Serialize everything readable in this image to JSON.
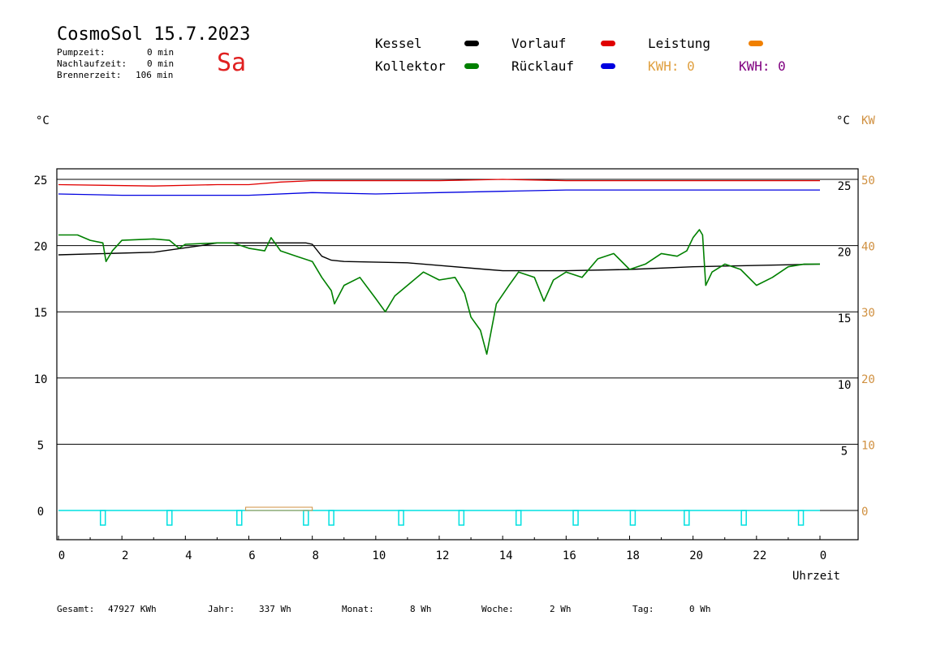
{
  "header": {
    "title": "CosmoSol 15.7.2023",
    "day": "Sa",
    "pumpzeit_label": "Pumpzeit:",
    "pumpzeit_value": "0 min",
    "nachlaufzeit_label": "Nachlaufzeit:",
    "nachlaufzeit_value": "0 min",
    "brennerzeit_label": "Brennerzeit:",
    "brennerzeit_value": "106 min"
  },
  "legend": {
    "kessel": "Kessel",
    "kollektor": "Kollektor",
    "vorlauf": "Vorlauf",
    "ruecklauf": "Rücklauf",
    "leistung": "Leistung",
    "kwh1": "KWH: 0",
    "kwh2": "KWH: 0"
  },
  "colors": {
    "kessel": "#000000",
    "kollektor": "#008000",
    "vorlauf": "#e00000",
    "ruecklauf": "#0000e0",
    "leistung": "#f08000",
    "kwh1": "#e0a040",
    "kwh2": "#800080",
    "pump": "#00e0e0",
    "burner": "#d09040"
  },
  "footer": {
    "gesamt_label": "Gesamt:",
    "gesamt_value": "47927 KWh",
    "jahr_label": "Jahr:",
    "jahr_value": "337 Wh",
    "monat_label": "Monat:",
    "monat_value": "8 Wh",
    "woche_label": "Woche:",
    "woche_value": "2 Wh",
    "tag_label": "Tag:",
    "tag_value": "0 Wh"
  },
  "chart_data": {
    "type": "line",
    "xlabel": "Uhrzeit",
    "ylabel_left": "°C",
    "ylabel_right": "°C",
    "ylabel_right2": "KW",
    "x_ticks": [
      "0",
      "2",
      "4",
      "6",
      "8",
      "10",
      "12",
      "14",
      "16",
      "18",
      "20",
      "22",
      "0"
    ],
    "y_ticks_left": [
      "0",
      "5",
      "10",
      "15",
      "20",
      "25"
    ],
    "y_ticks_right": [
      "5",
      "10",
      "15",
      "20",
      "25"
    ],
    "y_ticks_kw": [
      "0",
      "10",
      "20",
      "30",
      "40",
      "50"
    ],
    "xlim": [
      0,
      24
    ],
    "ylim": [
      -2,
      26
    ],
    "grid": "horizontal",
    "series": [
      {
        "name": "Vorlauf",
        "points": [
          [
            0,
            24.6
          ],
          [
            3,
            24.5
          ],
          [
            5,
            24.6
          ],
          [
            6,
            24.6
          ],
          [
            7,
            24.8
          ],
          [
            8,
            24.9
          ],
          [
            10,
            24.9
          ],
          [
            12,
            24.9
          ],
          [
            14,
            25.0
          ],
          [
            16,
            24.9
          ],
          [
            18,
            24.9
          ],
          [
            20,
            24.9
          ],
          [
            22,
            24.9
          ],
          [
            24,
            24.9
          ]
        ]
      },
      {
        "name": "Rücklauf",
        "points": [
          [
            0,
            23.9
          ],
          [
            2,
            23.8
          ],
          [
            4,
            23.8
          ],
          [
            6,
            23.8
          ],
          [
            8,
            24.0
          ],
          [
            10,
            23.9
          ],
          [
            12,
            24.0
          ],
          [
            14,
            24.1
          ],
          [
            16,
            24.2
          ],
          [
            18,
            24.2
          ],
          [
            20,
            24.2
          ],
          [
            22,
            24.2
          ],
          [
            24,
            24.2
          ]
        ]
      },
      {
        "name": "Kessel",
        "points": [
          [
            0,
            19.3
          ],
          [
            3,
            19.5
          ],
          [
            4.5,
            20.0
          ],
          [
            5,
            20.2
          ],
          [
            7.8,
            20.2
          ],
          [
            8.0,
            20.1
          ],
          [
            8.3,
            19.2
          ],
          [
            8.6,
            18.9
          ],
          [
            9,
            18.8
          ],
          [
            11,
            18.7
          ],
          [
            12,
            18.5
          ],
          [
            13.5,
            18.2
          ],
          [
            14,
            18.1
          ],
          [
            16,
            18.1
          ],
          [
            18,
            18.2
          ],
          [
            20,
            18.4
          ],
          [
            22,
            18.5
          ],
          [
            24,
            18.6
          ]
        ]
      },
      {
        "name": "Kollektor",
        "points": [
          [
            0,
            20.8
          ],
          [
            0.6,
            20.8
          ],
          [
            1.0,
            20.4
          ],
          [
            1.4,
            20.2
          ],
          [
            1.5,
            18.8
          ],
          [
            1.7,
            19.6
          ],
          [
            2.0,
            20.4
          ],
          [
            3.0,
            20.5
          ],
          [
            3.5,
            20.4
          ],
          [
            3.8,
            19.8
          ],
          [
            4.0,
            20.1
          ],
          [
            5.0,
            20.2
          ],
          [
            5.5,
            20.2
          ],
          [
            6.0,
            19.8
          ],
          [
            6.5,
            19.6
          ],
          [
            6.7,
            20.6
          ],
          [
            7.0,
            19.6
          ],
          [
            7.5,
            19.2
          ],
          [
            8.0,
            18.8
          ],
          [
            8.3,
            17.6
          ],
          [
            8.6,
            16.6
          ],
          [
            8.7,
            15.6
          ],
          [
            9.0,
            17.0
          ],
          [
            9.5,
            17.6
          ],
          [
            10.0,
            16.0
          ],
          [
            10.3,
            15.0
          ],
          [
            10.6,
            16.2
          ],
          [
            11.0,
            17.0
          ],
          [
            11.5,
            18.0
          ],
          [
            12.0,
            17.4
          ],
          [
            12.5,
            17.6
          ],
          [
            12.8,
            16.4
          ],
          [
            13.0,
            14.6
          ],
          [
            13.3,
            13.6
          ],
          [
            13.5,
            11.8
          ],
          [
            13.8,
            15.6
          ],
          [
            14.2,
            17.0
          ],
          [
            14.5,
            18.0
          ],
          [
            15.0,
            17.6
          ],
          [
            15.3,
            15.8
          ],
          [
            15.6,
            17.4
          ],
          [
            16.0,
            18.0
          ],
          [
            16.5,
            17.6
          ],
          [
            17.0,
            19.0
          ],
          [
            17.5,
            19.4
          ],
          [
            18.0,
            18.2
          ],
          [
            18.5,
            18.6
          ],
          [
            19.0,
            19.4
          ],
          [
            19.5,
            19.2
          ],
          [
            19.8,
            19.6
          ],
          [
            20.0,
            20.6
          ],
          [
            20.2,
            21.2
          ],
          [
            20.3,
            20.8
          ],
          [
            20.4,
            17.0
          ],
          [
            20.6,
            18.0
          ],
          [
            21.0,
            18.6
          ],
          [
            21.5,
            18.2
          ],
          [
            22.0,
            17.0
          ],
          [
            22.5,
            17.6
          ],
          [
            23.0,
            18.4
          ],
          [
            23.5,
            18.6
          ],
          [
            24.0,
            18.6
          ]
        ]
      },
      {
        "name": "Pumpe",
        "points": [
          [
            1.4,
            0
          ],
          [
            3.5,
            0
          ],
          [
            5.7,
            0
          ],
          [
            7.8,
            0
          ],
          [
            8.6,
            0
          ],
          [
            10.8,
            0
          ],
          [
            12.7,
            0
          ],
          [
            14.5,
            0
          ],
          [
            16.3,
            0
          ],
          [
            18.1,
            0
          ],
          [
            19.8,
            0
          ],
          [
            21.6,
            0
          ],
          [
            23.4,
            0
          ]
        ]
      },
      {
        "name": "Brenner",
        "points": [
          [
            5.9,
            0.1
          ],
          [
            8.0,
            0.1
          ]
        ]
      }
    ]
  }
}
